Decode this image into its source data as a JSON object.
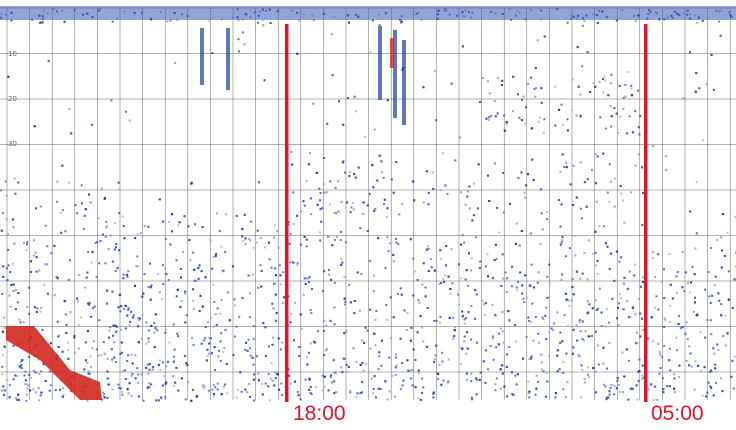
{
  "echogram": {
    "colors": {
      "background": "#ffffff",
      "grid": "#3a3a3a",
      "marker": "#e8102a",
      "echo_weak": "#9aa6c8",
      "echo_medium": "#3a57b8",
      "echo_strong": "#1e3fa0",
      "echo_peak": "#d2281e"
    },
    "depth_labels": [
      "10",
      "20",
      "30"
    ]
  },
  "markers": [
    {
      "label": "18:00"
    },
    {
      "label": "05:00"
    }
  ]
}
